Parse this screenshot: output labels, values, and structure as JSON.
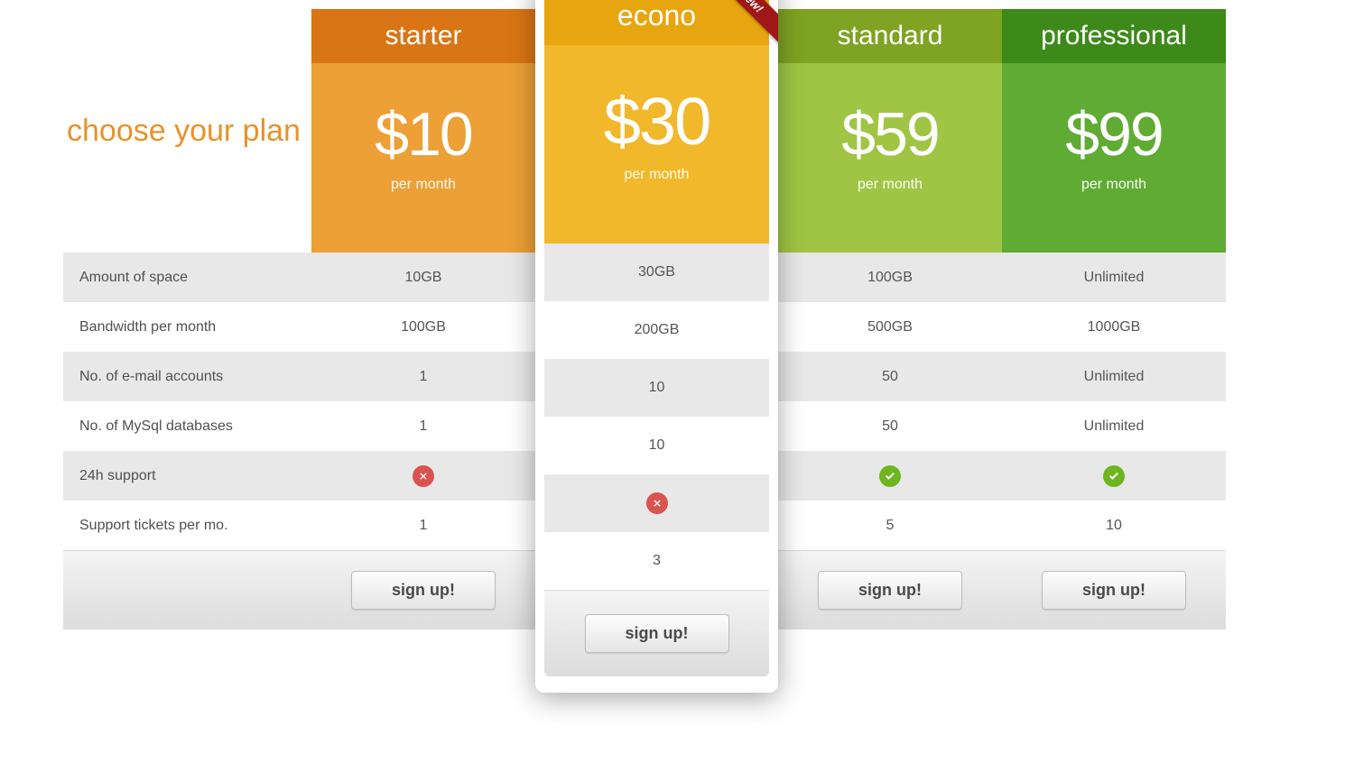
{
  "heading": "choose your plan",
  "period_label": "per month",
  "signup_label": "sign up!",
  "ribbon_label": "New!",
  "colors": {
    "heading_text": "#e8922a",
    "row_alt_bg": "#e8e8e8",
    "row_bg": "#ffffff",
    "footer_grad_top": "#f4f4f4",
    "footer_grad_bottom": "#dcdcdc",
    "button_border": "#bcbcbc",
    "ribbon_bg": "#a01717",
    "check_bg": "#6db61f",
    "cross_bg": "#d9534f",
    "text": "#555555"
  },
  "features": [
    "Amount of space",
    "Bandwidth per month",
    "No. of e-mail accounts",
    "No. of MySql databases",
    "24h support",
    "Support tickets per mo."
  ],
  "plans": [
    {
      "id": "starter",
      "name": "starter",
      "price": "$10",
      "featured": false,
      "name_bg": "#d97514",
      "price_bg": "#eca036",
      "values": [
        "10GB",
        "100GB",
        "1",
        "1",
        "cross",
        "1"
      ]
    },
    {
      "id": "econo",
      "name": "econo",
      "price": "$30",
      "featured": true,
      "name_bg": "#e7a50f",
      "price_bg": "#f1b82b",
      "values": [
        "30GB",
        "200GB",
        "10",
        "10",
        "cross",
        "3"
      ]
    },
    {
      "id": "standard",
      "name": "standard",
      "price": "$59",
      "featured": false,
      "name_bg": "#7fa323",
      "price_bg": "#a0c545",
      "values": [
        "100GB",
        "500GB",
        "50",
        "50",
        "check",
        "5"
      ]
    },
    {
      "id": "professional",
      "name": "professional",
      "price": "$99",
      "featured": false,
      "name_bg": "#3d8a1a",
      "price_bg": "#5fab33",
      "values": [
        "Unlimited",
        "1000GB",
        "Unlimited",
        "Unlimited",
        "check",
        "10"
      ]
    }
  ]
}
